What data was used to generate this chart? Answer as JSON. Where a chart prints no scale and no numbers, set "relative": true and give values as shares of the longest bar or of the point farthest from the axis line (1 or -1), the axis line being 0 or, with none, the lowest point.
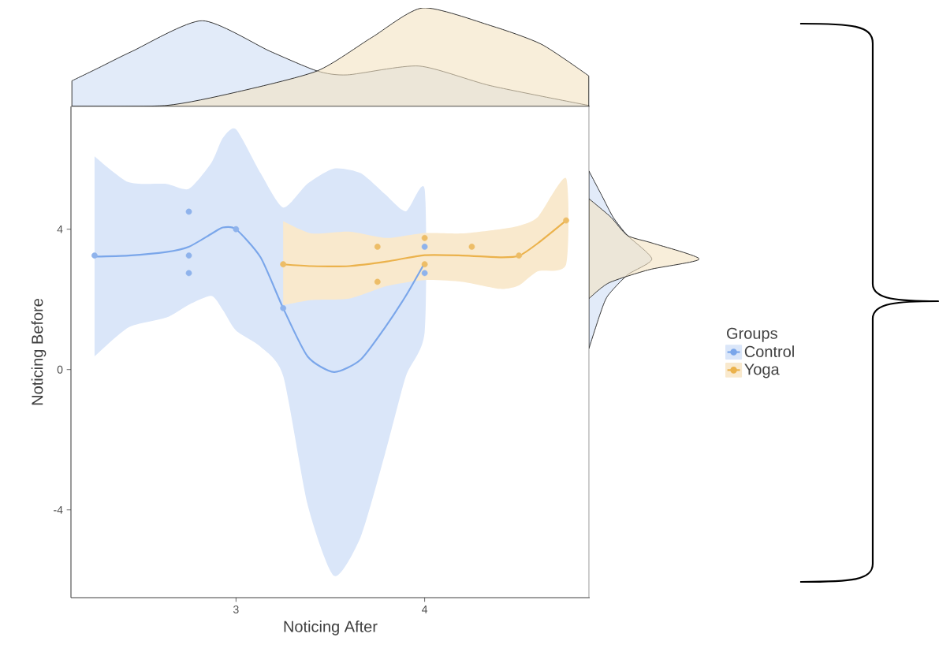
{
  "chart_data": [
    {
      "type": "scatter",
      "xlabel": "Noticing After",
      "ylabel": "Noticing Before",
      "xlim": [
        2.125,
        4.875
      ],
      "ylim": [
        -6.5,
        7.5
      ],
      "xticks": [
        3,
        4
      ],
      "yticks": [
        -4,
        0,
        4
      ],
      "legend": "right",
      "legend_title": "Groups",
      "series": [
        {
          "type": "line",
          "name": "Control",
          "color": "#7aa6ea",
          "x": [
            2.25,
            2.43,
            2.63,
            2.75,
            2.87,
            2.93,
            3.0,
            3.13,
            3.25,
            3.38,
            3.52,
            3.66,
            3.79,
            3.9,
            4.0
          ],
          "values": [
            3.22,
            3.25,
            3.35,
            3.5,
            3.87,
            4.05,
            4.0,
            3.2,
            1.75,
            0.37,
            -0.07,
            0.28,
            1.2,
            2.1,
            3.04
          ],
          "lower": [
            0.37,
            1.2,
            1.48,
            1.85,
            2.1,
            1.7,
            1.11,
            0.65,
            -0.18,
            -3.86,
            -5.88,
            -4.78,
            -2.4,
            -0.2,
            1.06
          ],
          "upper": [
            6.08,
            5.34,
            5.29,
            5.15,
            5.9,
            6.6,
            6.85,
            5.6,
            4.62,
            5.3,
            5.73,
            5.6,
            5.0,
            4.51,
            5.14
          ]
        },
        {
          "type": "line",
          "name": "Yoga",
          "color": "#ebb24c",
          "x": [
            3.25,
            3.4,
            3.6,
            3.8,
            4.0,
            4.2,
            4.4,
            4.5,
            4.6,
            4.75
          ],
          "values": [
            3.0,
            2.95,
            2.95,
            3.08,
            3.26,
            3.25,
            3.2,
            3.24,
            3.6,
            4.25
          ],
          "lower": [
            1.83,
            1.98,
            2.02,
            2.38,
            2.55,
            2.5,
            2.3,
            2.4,
            2.8,
            3.0
          ],
          "upper": [
            4.23,
            3.88,
            3.93,
            3.75,
            3.89,
            3.88,
            4.0,
            4.1,
            4.35,
            5.45
          ]
        },
        {
          "type": "scatter",
          "color": "#8fb3ec",
          "x": [
            2.25,
            2.75,
            2.75,
            2.75,
            3.0,
            3.25,
            4.0,
            4.0
          ],
          "values": [
            3.25,
            4.5,
            3.25,
            2.75,
            4.0,
            1.75,
            3.5,
            2.75
          ]
        },
        {
          "type": "scatter",
          "color": "#edbd67",
          "x": [
            3.25,
            3.75,
            3.75,
            4.0,
            4.0,
            4.25,
            4.5,
            4.75
          ],
          "values": [
            3.0,
            3.5,
            2.5,
            3.75,
            3.0,
            3.5,
            3.25,
            4.25
          ]
        }
      ]
    },
    {
      "type": "area",
      "relative": true,
      "tick_labels": false,
      "xlim": [
        2.125,
        4.875
      ],
      "series": [
        {
          "color": "#cfdef5",
          "x": [
            2.13,
            2.27,
            2.45,
            2.82,
            3.18,
            3.43,
            3.59,
            3.97,
            4.35,
            4.87
          ],
          "values": [
            0.26,
            0.39,
            0.56,
            0.87,
            0.56,
            0.36,
            0.32,
            0.41,
            0.21,
            0.01
          ]
        },
        {
          "color": "#f3e3c2",
          "x": [
            2.13,
            2.63,
            2.99,
            3.43,
            3.72,
            3.99,
            4.35,
            4.62,
            4.87
          ],
          "values": [
            0,
            0.01,
            0.14,
            0.36,
            0.7,
            1.0,
            0.82,
            0.63,
            0.31
          ]
        }
      ]
    },
    {
      "type": "area",
      "relative": true,
      "orientation": "horizontal",
      "tick_labels": false,
      "ylim": [
        -6.5,
        7.5
      ],
      "series": [
        {
          "color": "#cfdef5",
          "x": [
            0.6,
            1.57,
            2.1,
            2.7,
            3.15,
            3.82,
            4.34,
            4.94,
            5.66
          ],
          "values": [
            0,
            0.1,
            0.17,
            0.35,
            0.57,
            0.35,
            0.22,
            0.12,
            0
          ]
        },
        {
          "color": "#f3e3c2",
          "x": [
            2.02,
            2.47,
            2.85,
            3.15,
            3.6,
            3.82,
            4.34,
            4.87
          ],
          "values": [
            0,
            0.18,
            0.55,
            1.0,
            0.58,
            0.35,
            0.2,
            0
          ]
        }
      ]
    }
  ]
}
